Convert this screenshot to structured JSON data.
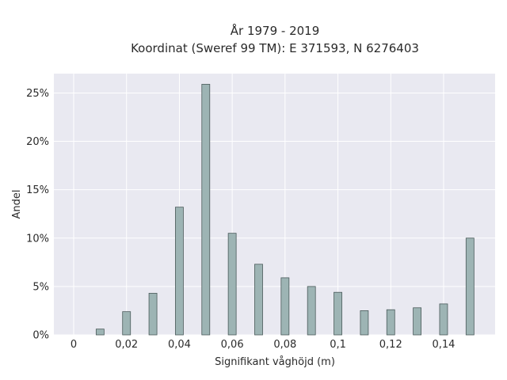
{
  "chart_data": {
    "type": "bar",
    "title": [
      "År 1979 - 2019",
      "Koordinat (Sweref 99 TM): E 371593, N 6276403"
    ],
    "xlabel": "Signifikant våghöjd (m)",
    "ylabel": "Andel",
    "x": [
      0.01,
      0.02,
      0.03,
      0.04,
      0.05,
      0.06,
      0.07,
      0.08,
      0.09,
      0.1,
      0.11,
      0.12,
      0.13,
      0.14,
      0.15
    ],
    "values": [
      0.6,
      2.4,
      4.3,
      13.2,
      25.9,
      10.5,
      7.3,
      5.9,
      5.0,
      4.4,
      2.5,
      2.6,
      2.8,
      3.2,
      10.0
    ],
    "xlim": [
      -0.0075,
      0.1595
    ],
    "ylim": [
      0,
      27
    ],
    "x_ticks": [
      0,
      0.02,
      0.04,
      0.06,
      0.08,
      0.1,
      0.12,
      0.14
    ],
    "x_tick_labels": [
      "0",
      "0,02",
      "0,04",
      "0,06",
      "0,08",
      "0,1",
      "0,12",
      "0,14"
    ],
    "y_ticks": [
      0,
      5,
      10,
      15,
      20,
      25
    ],
    "y_tick_labels": [
      "0%",
      "5%",
      "10%",
      "15%",
      "20%",
      "25%"
    ],
    "grid": true,
    "colors": {
      "bar_fill": "#9db4b4",
      "bar_stroke": "#4a5a5a",
      "plot_bg": "#e9e9f1",
      "grid": "#ffffff"
    }
  }
}
